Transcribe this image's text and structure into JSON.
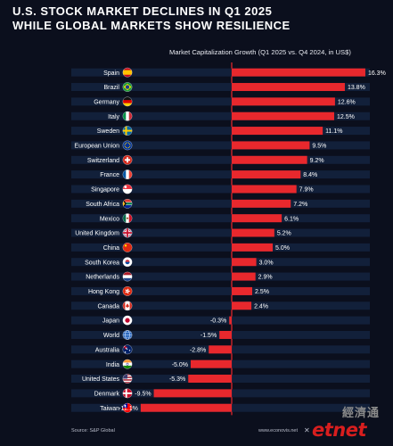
{
  "header": {
    "title_line1": "U.S. STOCK MARKET DECLINES IN Q1 2025",
    "title_line2": "WHILE GLOBAL MARKETS SHOW RESILIENCE"
  },
  "footer": {
    "source": "Source: S&P Global",
    "site": "www.econovis.net",
    "watermark_cn": "經濟通",
    "watermark": "etnet"
  },
  "colors": {
    "background": "#0b0f1d",
    "bar": "#e8282d",
    "track": "#14233f",
    "text": "#ffffff"
  },
  "chart_data": {
    "type": "bar",
    "orientation": "horizontal",
    "title": "Market Capitalization Growth (Q1 2025 vs. Q4 2024, in US$)",
    "categories": [
      "Spain",
      "Brazil",
      "Germany",
      "Italy",
      "Sweden",
      "European Union",
      "Switzerland",
      "France",
      "Singapore",
      "South Africa",
      "Mexico",
      "United Kingdom",
      "China",
      "South Korea",
      "Netherlands",
      "Hong Kong",
      "Canada",
      "Japan",
      "World",
      "Australia",
      "India",
      "United States",
      "Denmark",
      "Taiwan"
    ],
    "values": [
      16.3,
      13.8,
      12.6,
      12.5,
      11.1,
      9.5,
      9.2,
      8.4,
      7.9,
      7.2,
      6.1,
      5.2,
      5.0,
      3.0,
      2.9,
      2.5,
      2.4,
      -0.3,
      -1.5,
      -2.8,
      -5.0,
      -5.3,
      -9.5,
      -11.1
    ],
    "labels": [
      "16.3%",
      "13.8%",
      "12.6%",
      "12.5%",
      "11.1%",
      "9.5%",
      "9.2%",
      "8.4%",
      "7.9%",
      "7.2%",
      "6.1%",
      "5.2%",
      "5.0%",
      "3.0%",
      "2.9%",
      "2.5%",
      "2.4%",
      "-0.3%",
      "-1.5%",
      "-2.8%",
      "-5.0%",
      "-5.3%",
      "-9.5%",
      "-11.1%"
    ],
    "flags": [
      "flag-spain-icon",
      "flag-brazil-icon",
      "flag-germany-icon",
      "flag-italy-icon",
      "flag-sweden-icon",
      "flag-eu-icon",
      "flag-switzerland-icon",
      "flag-france-icon",
      "flag-singapore-icon",
      "flag-south-africa-icon",
      "flag-mexico-icon",
      "flag-uk-icon",
      "flag-china-icon",
      "flag-south-korea-icon",
      "flag-netherlands-icon",
      "flag-hong-kong-icon",
      "flag-canada-icon",
      "flag-japan-icon",
      "globe-icon",
      "flag-australia-icon",
      "flag-india-icon",
      "flag-usa-icon",
      "flag-denmark-icon",
      "flag-taiwan-icon"
    ],
    "xlim": [
      -12,
      17
    ],
    "grid": false,
    "legend": "none"
  }
}
